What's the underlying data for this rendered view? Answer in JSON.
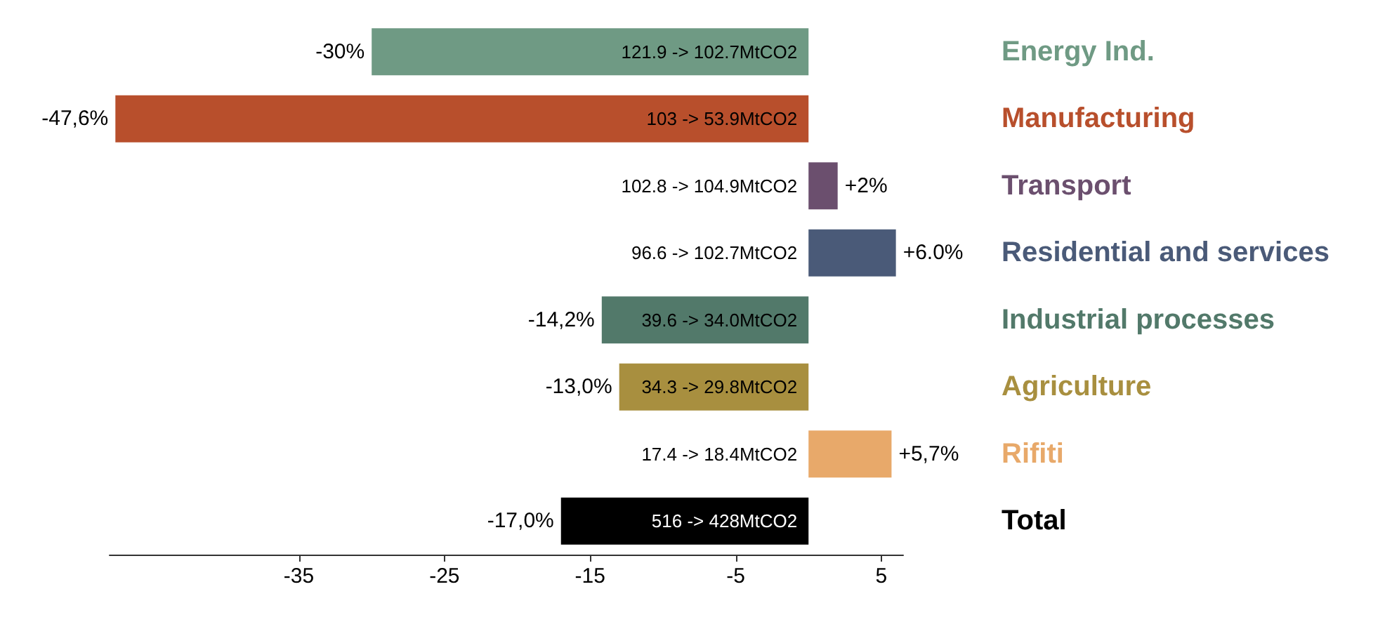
{
  "chart_data": {
    "type": "bar",
    "orientation": "horizontal",
    "categories": [
      "Energy Ind.",
      "Manufacturing",
      "Transport",
      "Residential and services",
      "Industrial processes",
      "Agriculture",
      "Rifiti",
      "Total"
    ],
    "values": [
      -30,
      -47.6,
      2,
      6.0,
      -14.2,
      -13.0,
      5.7,
      -17.0
    ],
    "colors": [
      "#6f9a84",
      "#b84f2c",
      "#6b4f6e",
      "#4a5a78",
      "#52796a",
      "#a88f3f",
      "#e8a96a",
      "#000000"
    ],
    "value_labels": [
      "-30%",
      "-47,6%",
      "+2%",
      "+6.0%",
      "-14,2%",
      "-13,0%",
      "+5,7%",
      "-17,0%"
    ],
    "annotations": [
      "121.9 -> 102.7MtCO2",
      "103 -> 53.9MtCO2",
      "102.8 -> 104.9MtCO2",
      "96.6 -> 102.7MtCO2",
      "39.6 -> 34.0MtCO2",
      "34.3 -> 29.8MtCO2",
      "17.4 -> 18.4MtCO2",
      "516 -> 428MtCO2"
    ],
    "xlim": [
      -48,
      6.5
    ],
    "xticks": [
      -35,
      -25,
      -15,
      -5,
      5
    ],
    "grid": false
  }
}
